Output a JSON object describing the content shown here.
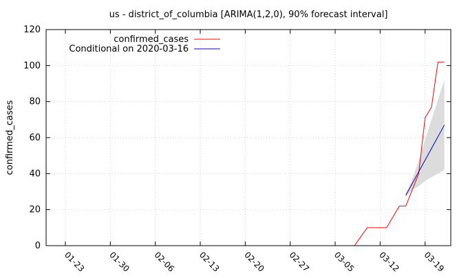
{
  "chart_data": {
    "type": "line",
    "title": "us - district_of_columbia [ARIMA(1,2,0), 90% forecast interval]",
    "xlabel": "",
    "ylabel": "confirmed_cases",
    "ylim": [
      0,
      120
    ],
    "xlim": [
      "2020-01-20",
      "2020-03-23"
    ],
    "grid": true,
    "legend_position": "top-left",
    "y_ticks": [
      0,
      20,
      40,
      60,
      80,
      100,
      120
    ],
    "y_tick_labels": [
      "0",
      "20",
      "40",
      "60",
      "80",
      "100",
      "120"
    ],
    "x_ticks": [
      "2020-01-23",
      "2020-01-30",
      "2020-02-06",
      "2020-02-13",
      "2020-02-20",
      "2020-02-27",
      "2020-03-05",
      "2020-03-12",
      "2020-03-19"
    ],
    "x_tick_labels": [
      "01-23",
      "01-30",
      "02-06",
      "02-13",
      "02-20",
      "02-27",
      "03-05",
      "03-12",
      "03-19"
    ],
    "series": [
      {
        "name": "confirmed_cases",
        "color": "#ff0000",
        "points": [
          {
            "x": "2020-03-07",
            "y": 0
          },
          {
            "x": "2020-03-08",
            "y": 0
          },
          {
            "x": "2020-03-09",
            "y": 5
          },
          {
            "x": "2020-03-10",
            "y": 10
          },
          {
            "x": "2020-03-11",
            "y": 10
          },
          {
            "x": "2020-03-12",
            "y": 10
          },
          {
            "x": "2020-03-13",
            "y": 10
          },
          {
            "x": "2020-03-14",
            "y": 16
          },
          {
            "x": "2020-03-15",
            "y": 22
          },
          {
            "x": "2020-03-16",
            "y": 22
          },
          {
            "x": "2020-03-17",
            "y": 31
          },
          {
            "x": "2020-03-18",
            "y": 40
          },
          {
            "x": "2020-03-19",
            "y": 71
          },
          {
            "x": "2020-03-20",
            "y": 77
          },
          {
            "x": "2020-03-21",
            "y": 102
          },
          {
            "x": "2020-03-22",
            "y": 102
          }
        ]
      },
      {
        "name": "Conditional on 2020-03-16",
        "color": "#0000cc",
        "points": [
          {
            "x": "2020-03-16",
            "y": 28
          },
          {
            "x": "2020-03-22",
            "y": 67
          }
        ]
      }
    ],
    "forecast_band": {
      "color": "#dcdcdc",
      "points": [
        {
          "x": "2020-03-16",
          "lower": 27,
          "upper": 29
        },
        {
          "x": "2020-03-17",
          "lower": 31,
          "upper": 37
        },
        {
          "x": "2020-03-18",
          "lower": 33,
          "upper": 47
        },
        {
          "x": "2020-03-19",
          "lower": 36,
          "upper": 59
        },
        {
          "x": "2020-03-20",
          "lower": 38,
          "upper": 70
        },
        {
          "x": "2020-03-21",
          "lower": 40,
          "upper": 81
        },
        {
          "x": "2020-03-22",
          "lower": 42,
          "upper": 92
        }
      ]
    }
  }
}
